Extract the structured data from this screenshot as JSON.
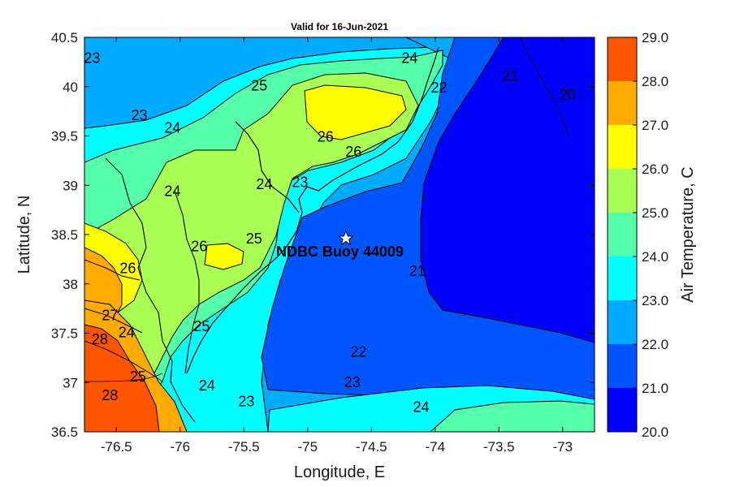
{
  "chart_data": {
    "type": "contour",
    "title": "Valid for 16-Jun-2021",
    "xlabel": "Longitude, E",
    "ylabel": "Latitude, N",
    "xlim": [
      -76.75,
      -72.75
    ],
    "ylim": [
      36.5,
      40.5
    ],
    "x_ticks": [
      "-76.5",
      "-76",
      "-75.5",
      "-75",
      "-74.5",
      "-74",
      "-73.5",
      "-73"
    ],
    "y_ticks": [
      "40.5",
      "40",
      "39.5",
      "39",
      "38.5",
      "38",
      "37.5",
      "37",
      "36.5"
    ],
    "colorbar": {
      "label": "Air Temperature, C",
      "min": 20.0,
      "max": 29.0,
      "ticks": [
        "29.0",
        "28.0",
        "27.0",
        "26.0",
        "25.0",
        "24.0",
        "23.0",
        "22.0",
        "21.0",
        "20.0"
      ],
      "colors": [
        "#0000ff",
        "#0055ff",
        "#00aaff",
        "#00ffff",
        "#55ffaa",
        "#aaff55",
        "#ffff00",
        "#ffaa00",
        "#ff5500"
      ]
    },
    "contour_labels": [
      {
        "text": "23",
        "lon": -76.69,
        "lat": 40.28
      },
      {
        "text": "25",
        "lon": -75.38,
        "lat": 40.0
      },
      {
        "text": "24",
        "lon": -74.2,
        "lat": 40.28
      },
      {
        "text": "22",
        "lon": -73.97,
        "lat": 39.98
      },
      {
        "text": "21",
        "lon": -73.41,
        "lat": 40.1
      },
      {
        "text": "20",
        "lon": -72.96,
        "lat": 39.91
      },
      {
        "text": "23",
        "lon": -76.32,
        "lat": 39.7
      },
      {
        "text": "24",
        "lon": -76.06,
        "lat": 39.57
      },
      {
        "text": "26",
        "lon": -74.86,
        "lat": 39.48
      },
      {
        "text": "26",
        "lon": -74.64,
        "lat": 39.33
      },
      {
        "text": "24",
        "lon": -75.34,
        "lat": 39.0
      },
      {
        "text": "23",
        "lon": -75.06,
        "lat": 39.02
      },
      {
        "text": "24",
        "lon": -76.06,
        "lat": 38.93
      },
      {
        "text": "25",
        "lon": -75.42,
        "lat": 38.45
      },
      {
        "text": "26",
        "lon": -75.85,
        "lat": 38.37
      },
      {
        "text": "26",
        "lon": -76.41,
        "lat": 38.15
      },
      {
        "text": "21",
        "lon": -74.14,
        "lat": 38.12
      },
      {
        "text": "24",
        "lon": -76.42,
        "lat": 37.5
      },
      {
        "text": "25",
        "lon": -75.83,
        "lat": 37.56
      },
      {
        "text": "27",
        "lon": -76.55,
        "lat": 37.67
      },
      {
        "text": "28",
        "lon": -76.63,
        "lat": 37.43
      },
      {
        "text": "25",
        "lon": -76.33,
        "lat": 37.05
      },
      {
        "text": "22",
        "lon": -74.6,
        "lat": 37.3
      },
      {
        "text": "23",
        "lon": -74.65,
        "lat": 36.99
      },
      {
        "text": "24",
        "lon": -75.79,
        "lat": 36.96
      },
      {
        "text": "23",
        "lon": -75.48,
        "lat": 36.8
      },
      {
        "text": "24",
        "lon": -74.11,
        "lat": 36.74
      },
      {
        "text": "28",
        "lon": -76.55,
        "lat": 36.86
      }
    ],
    "station": {
      "name": "NDBC Buoy 44009",
      "lon": -74.7,
      "lat": 38.46
    }
  }
}
